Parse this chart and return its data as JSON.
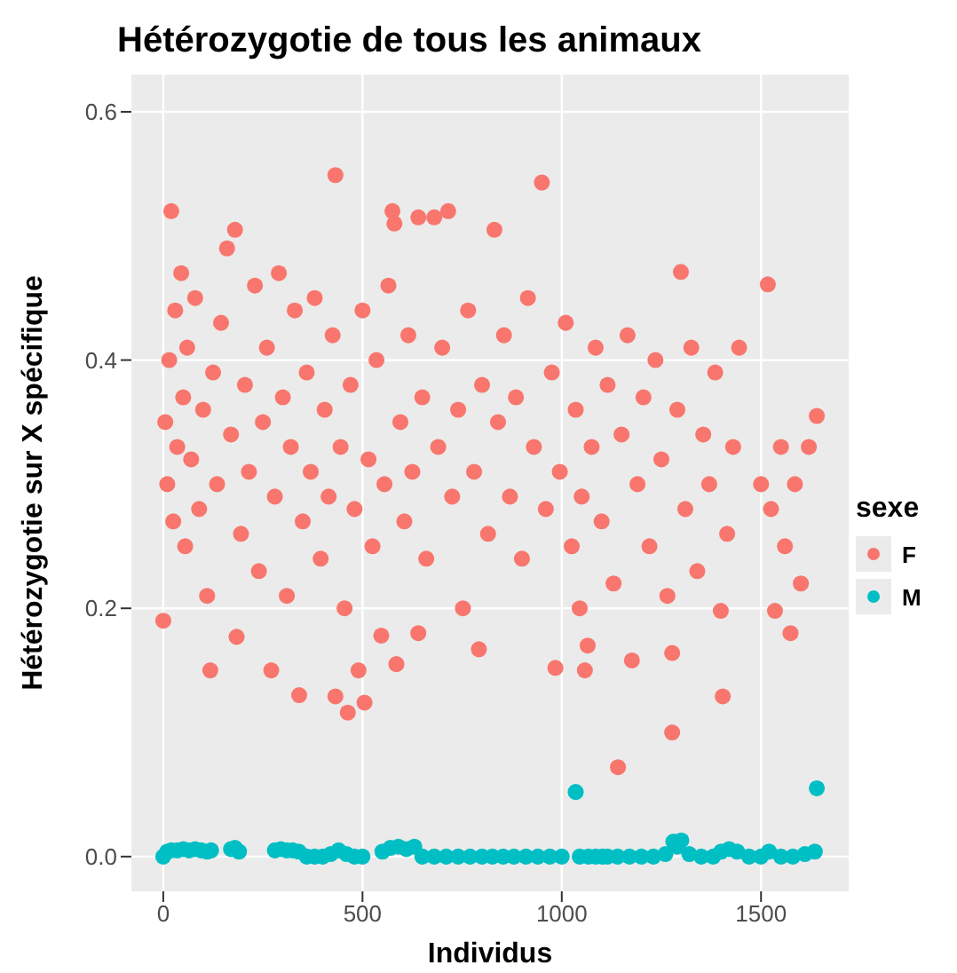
{
  "chart_data": {
    "type": "scatter",
    "title": "Hétérozygotie de tous les animaux",
    "xlabel": "Individus",
    "ylabel": "Hétérozygotie sur X spécifique",
    "legend_title": "sexe",
    "legend": "right",
    "grid": true,
    "marker": "circle",
    "xlim": [
      -80,
      1720
    ],
    "xticks": [
      0,
      500,
      1000,
      1500
    ],
    "ylim": [
      -0.028,
      0.63
    ],
    "yticks": [
      {
        "value": 0,
        "label": "0.0"
      },
      0.2,
      0.4,
      0.6
    ],
    "series": [
      {
        "name": "F",
        "color": "#f8766d",
        "x": [
          0,
          5,
          10,
          15,
          20,
          25,
          30,
          35,
          45,
          50,
          55,
          60,
          70,
          80,
          90,
          100,
          110,
          118,
          125,
          135,
          145,
          160,
          170,
          180,
          184,
          195,
          205,
          215,
          230,
          240,
          250,
          260,
          271,
          280,
          290,
          300,
          310,
          320,
          330,
          341,
          350,
          360,
          370,
          380,
          395,
          405,
          415,
          425,
          432,
          432,
          445,
          455,
          463,
          470,
          480,
          490,
          500,
          505,
          515,
          525,
          535,
          547,
          555,
          565,
          575,
          580,
          585,
          595,
          605,
          615,
          625,
          640,
          640,
          650,
          660,
          680,
          690,
          700,
          715,
          725,
          740,
          752,
          765,
          780,
          792,
          800,
          815,
          831,
          840,
          855,
          870,
          885,
          900,
          915,
          930,
          950,
          960,
          975,
          984,
          995,
          1010,
          1025,
          1035,
          1045,
          1050,
          1058,
          1065,
          1075,
          1085,
          1100,
          1115,
          1130,
          1141,
          1150,
          1165,
          1176,
          1190,
          1205,
          1220,
          1235,
          1250,
          1265,
          1277,
          1277,
          1290,
          1299,
          1310,
          1325,
          1340,
          1355,
          1370,
          1385,
          1399,
          1404,
          1415,
          1430,
          1445,
          1500,
          1517,
          1525,
          1535,
          1550,
          1560,
          1574,
          1585,
          1600,
          1620,
          1640
        ],
        "values": [
          0.19,
          0.35,
          0.3,
          0.4,
          0.52,
          0.27,
          0.44,
          0.33,
          0.47,
          0.37,
          0.25,
          0.41,
          0.32,
          0.45,
          0.28,
          0.36,
          0.21,
          0.15,
          0.39,
          0.3,
          0.43,
          0.49,
          0.34,
          0.505,
          0.177,
          0.26,
          0.38,
          0.31,
          0.46,
          0.23,
          0.35,
          0.41,
          0.15,
          0.29,
          0.47,
          0.37,
          0.21,
          0.33,
          0.44,
          0.13,
          0.27,
          0.39,
          0.31,
          0.45,
          0.24,
          0.36,
          0.29,
          0.42,
          0.549,
          0.129,
          0.33,
          0.2,
          0.116,
          0.38,
          0.28,
          0.15,
          0.44,
          0.124,
          0.32,
          0.25,
          0.4,
          0.178,
          0.3,
          0.46,
          0.52,
          0.51,
          0.155,
          0.35,
          0.27,
          0.42,
          0.31,
          0.515,
          0.18,
          0.37,
          0.24,
          0.515,
          0.33,
          0.41,
          0.52,
          0.29,
          0.36,
          0.2,
          0.44,
          0.31,
          0.167,
          0.38,
          0.26,
          0.505,
          0.35,
          0.42,
          0.29,
          0.37,
          0.24,
          0.45,
          0.33,
          0.543,
          0.28,
          0.39,
          0.152,
          0.31,
          0.43,
          0.25,
          0.36,
          0.2,
          0.29,
          0.15,
          0.17,
          0.33,
          0.41,
          0.27,
          0.38,
          0.22,
          0.072,
          0.34,
          0.42,
          0.158,
          0.3,
          0.37,
          0.25,
          0.4,
          0.32,
          0.21,
          0.1,
          0.164,
          0.36,
          0.471,
          0.28,
          0.41,
          0.23,
          0.34,
          0.3,
          0.39,
          0.198,
          0.129,
          0.26,
          0.33,
          0.41,
          0.3,
          0.461,
          0.28,
          0.198,
          0.33,
          0.25,
          0.18,
          0.3,
          0.22,
          0.33,
          0.355
        ]
      },
      {
        "name": "M",
        "color": "#00bfc4",
        "x": [
          0,
          10,
          20,
          35,
          50,
          65,
          80,
          95,
          110,
          120,
          170,
          180,
          190,
          280,
          295,
          310,
          325,
          340,
          360,
          380,
          400,
          420,
          440,
          460,
          480,
          500,
          550,
          570,
          590,
          610,
          630,
          650,
          680,
          710,
          740,
          770,
          800,
          826,
          853,
          880,
          910,
          940,
          970,
          1000,
          1035,
          1045,
          1067,
          1085,
          1102,
          1115,
          1140,
          1170,
          1200,
          1230,
          1260,
          1280,
          1290,
          1300,
          1320,
          1350,
          1380,
          1400,
          1420,
          1440,
          1470,
          1500,
          1520,
          1550,
          1580,
          1610,
          1635,
          1640
        ],
        "values": [
          0,
          0.004,
          0.005,
          0.005,
          0.006,
          0.005,
          0.006,
          0.005,
          0.004,
          0.005,
          0.006,
          0.007,
          0.004,
          0.005,
          0.006,
          0.005,
          0.005,
          0.004,
          0,
          0,
          0,
          0.002,
          0.005,
          0.002,
          0,
          0,
          0.004,
          0.007,
          0.008,
          0.006,
          0.008,
          0,
          0,
          0,
          0,
          0,
          0,
          0,
          0,
          0,
          0,
          0,
          0,
          0,
          0.052,
          0,
          0,
          0,
          0,
          0,
          0,
          0,
          0,
          0,
          0.002,
          0.012,
          0.008,
          0.013,
          0.002,
          0,
          0,
          0.004,
          0.006,
          0.004,
          0,
          0,
          0.004,
          0,
          0,
          0.002,
          0.004,
          0.055
        ]
      }
    ]
  }
}
